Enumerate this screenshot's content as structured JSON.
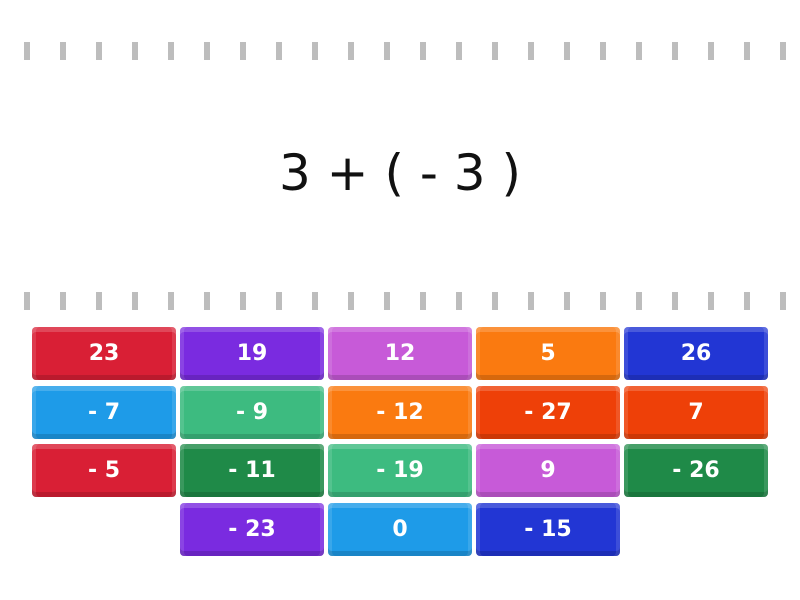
{
  "question": "3 + ( - 3 )",
  "tiles": [
    {
      "label": "23",
      "color": "#d91f35"
    },
    {
      "label": "19",
      "color": "#7a2be0"
    },
    {
      "label": "12",
      "color": "#c75ad8"
    },
    {
      "label": "5",
      "color": "#fa7a10"
    },
    {
      "label": "26",
      "color": "#2236d4"
    },
    {
      "label": "- 7",
      "color": "#1e9be8"
    },
    {
      "label": "- 9",
      "color": "#3dbb80"
    },
    {
      "label": "- 12",
      "color": "#fa7a10"
    },
    {
      "label": "- 27",
      "color": "#ee4008"
    },
    {
      "label": "7",
      "color": "#ee4008"
    },
    {
      "label": "- 5",
      "color": "#d91f35"
    },
    {
      "label": "- 11",
      "color": "#1f8a48"
    },
    {
      "label": "- 19",
      "color": "#3dbb80"
    },
    {
      "label": "9",
      "color": "#c75ad8"
    },
    {
      "label": "- 26",
      "color": "#1f8a48"
    },
    {
      "label": "- 23",
      "color": "#7a2be0"
    },
    {
      "label": "0",
      "color": "#1e9be8"
    },
    {
      "label": "- 15",
      "color": "#2236d4"
    }
  ]
}
